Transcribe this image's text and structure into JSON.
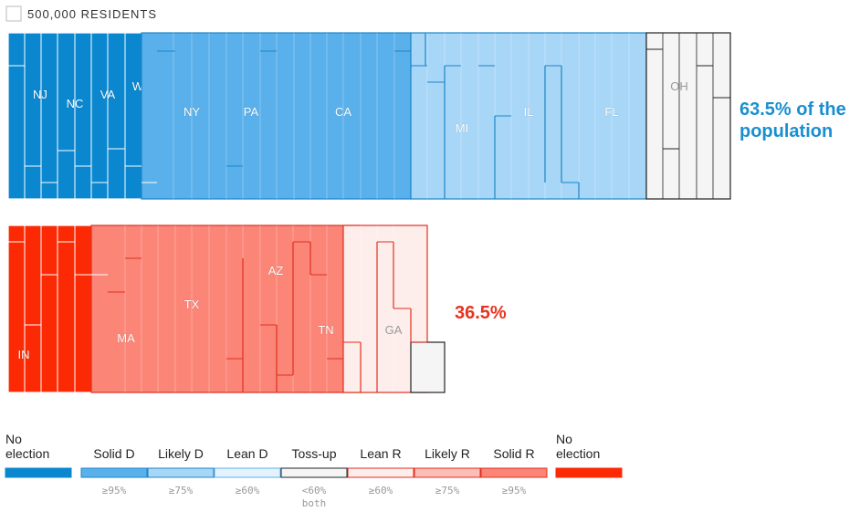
{
  "scale": {
    "label": "500,000 RESIDENTS"
  },
  "colors": {
    "no_election_d": "#0a87cf",
    "solid_d": "#5ab0ea",
    "likely_d": "#a8d6f7",
    "lean_d": "#e3f2fc",
    "tossup": "#f5f5f5",
    "lean_r": "#fdeeec",
    "likely_r": "#fdbdb7",
    "solid_r": "#fb8577",
    "no_election_r": "#fb2a04",
    "pct_d": "#1a8fd0",
    "pct_r": "#e8321e"
  },
  "chart_data": {
    "type": "treemap",
    "unit_label": "500,000 RESIDENTS",
    "rows": [
      {
        "name": "democratic",
        "share_text_line1": "63.5% of the",
        "share_text_line2": "population",
        "share_value": 63.5,
        "groups": [
          {
            "category": "No election",
            "labels": [
              "NJ",
              "NC",
              "VA",
              "WA"
            ]
          },
          {
            "category": "Solid D",
            "labels": [
              "NY",
              "PA",
              "CA"
            ]
          },
          {
            "category": "Likely D",
            "labels": [
              "MI",
              "IL",
              "FL"
            ]
          },
          {
            "category": "Toss-up",
            "labels": [
              "OH"
            ]
          }
        ]
      },
      {
        "name": "republican",
        "share_text_line1": "36.5%",
        "share_text_line2": "",
        "share_value": 36.5,
        "groups": [
          {
            "category": "No election",
            "labels": [
              "IN"
            ]
          },
          {
            "category": "Solid R",
            "labels": [
              "MA",
              "TX",
              "AZ",
              "TN"
            ]
          },
          {
            "category": "Lean R",
            "labels": [
              "GA"
            ]
          },
          {
            "category": "Toss-up",
            "labels": []
          }
        ]
      }
    ],
    "legend": [
      {
        "key": "no_election_d",
        "label": "No election",
        "sub": ""
      },
      {
        "key": "solid_d",
        "label": "Solid D",
        "sub": "≥95%"
      },
      {
        "key": "likely_d",
        "label": "Likely D",
        "sub": "≥75%"
      },
      {
        "key": "lean_d",
        "label": "Lean D",
        "sub": "≥60%"
      },
      {
        "key": "tossup",
        "label": "Toss-up",
        "sub": "<60% both"
      },
      {
        "key": "lean_r",
        "label": "Lean R",
        "sub": "≥60%"
      },
      {
        "key": "likely_r",
        "label": "Likely R",
        "sub": "≥75%"
      },
      {
        "key": "solid_r",
        "label": "Solid R",
        "sub": "≥95%"
      },
      {
        "key": "no_election_r",
        "label": "No election",
        "sub": ""
      }
    ]
  }
}
